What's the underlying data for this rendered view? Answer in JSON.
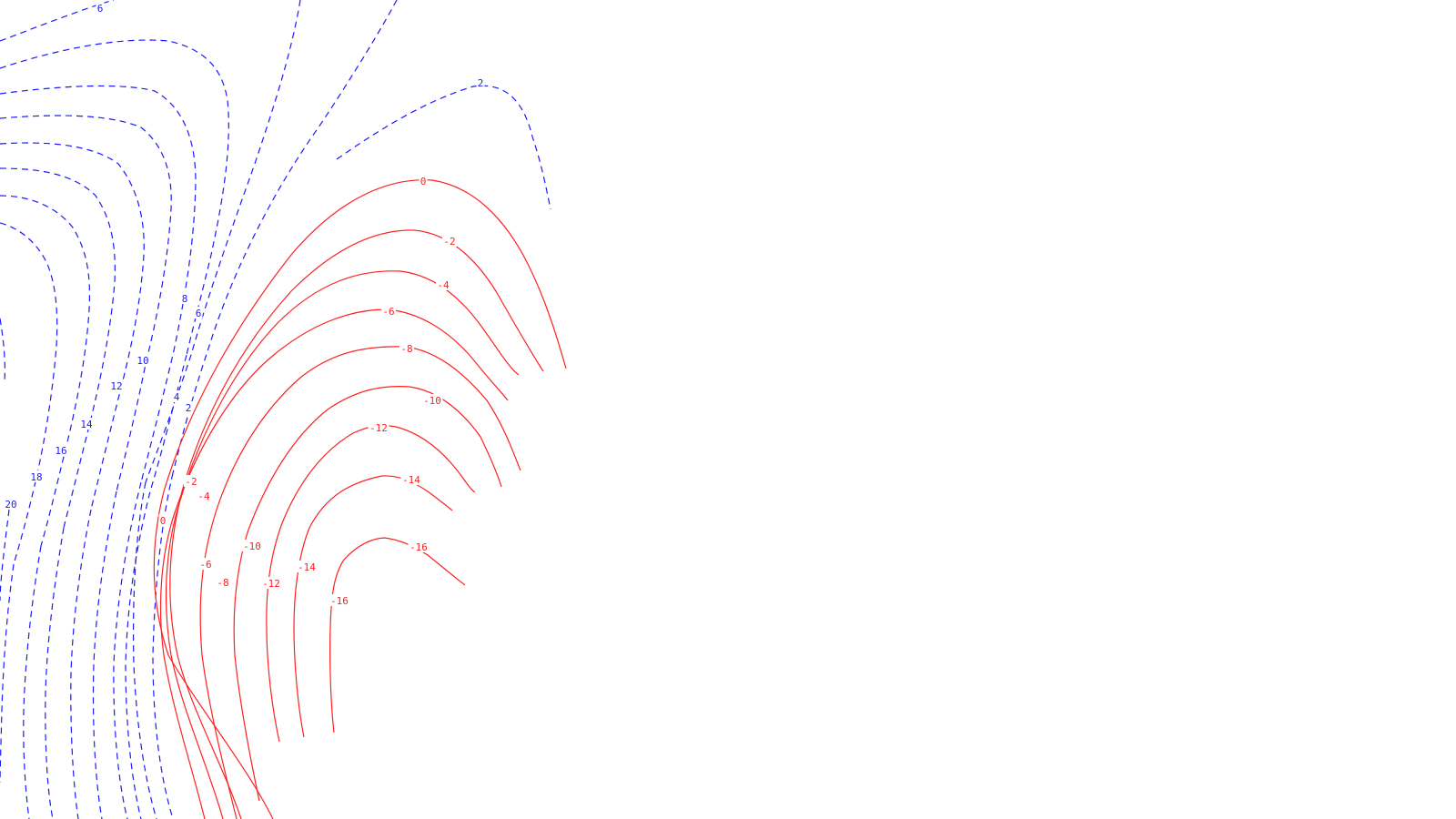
{
  "chart_data": {
    "type": "contour",
    "title": "",
    "xlabel": "",
    "ylabel": "",
    "colors": {
      "positive": "#1a1aff",
      "nonpositive": "#ff2020",
      "background": "#ffffff"
    },
    "line_styles": {
      "positive": "dashed",
      "nonpositive": "solid"
    },
    "positive_levels": [
      2,
      4,
      6,
      8,
      10,
      12,
      14,
      16,
      18,
      20
    ],
    "nonpositive_levels": [
      0,
      -2,
      -4,
      -6,
      -8,
      -10,
      -12,
      -14,
      -16
    ],
    "labels": [
      {
        "level": 6,
        "text": "6"
      },
      {
        "level": 2,
        "text": "2"
      },
      {
        "level": 8,
        "text": "8"
      },
      {
        "level": 6,
        "text": "6"
      },
      {
        "level": 10,
        "text": "10"
      },
      {
        "level": 12,
        "text": "12"
      },
      {
        "level": 4,
        "text": "4"
      },
      {
        "level": 2,
        "text": "2"
      },
      {
        "level": 14,
        "text": "14"
      },
      {
        "level": 16,
        "text": "16"
      },
      {
        "level": 18,
        "text": "18"
      },
      {
        "level": 20,
        "text": "20"
      },
      {
        "level": 0,
        "text": "0"
      },
      {
        "level": -2,
        "text": "-2"
      },
      {
        "level": -4,
        "text": "-4"
      },
      {
        "level": -6,
        "text": "-6"
      },
      {
        "level": -8,
        "text": "-8"
      },
      {
        "level": -10,
        "text": "-10"
      },
      {
        "level": -12,
        "text": "-12"
      },
      {
        "level": -14,
        "text": "-14"
      },
      {
        "level": -16,
        "text": "-16"
      },
      {
        "level": 0,
        "text": "0"
      },
      {
        "level": -2,
        "text": "-2"
      },
      {
        "level": -4,
        "text": "-4"
      },
      {
        "level": -6,
        "text": "-6"
      },
      {
        "level": -8,
        "text": "-8"
      },
      {
        "level": -10,
        "text": "-10"
      },
      {
        "level": -12,
        "text": "-12"
      },
      {
        "level": -14,
        "text": "-14"
      },
      {
        "level": -16,
        "text": "-16"
      }
    ]
  }
}
